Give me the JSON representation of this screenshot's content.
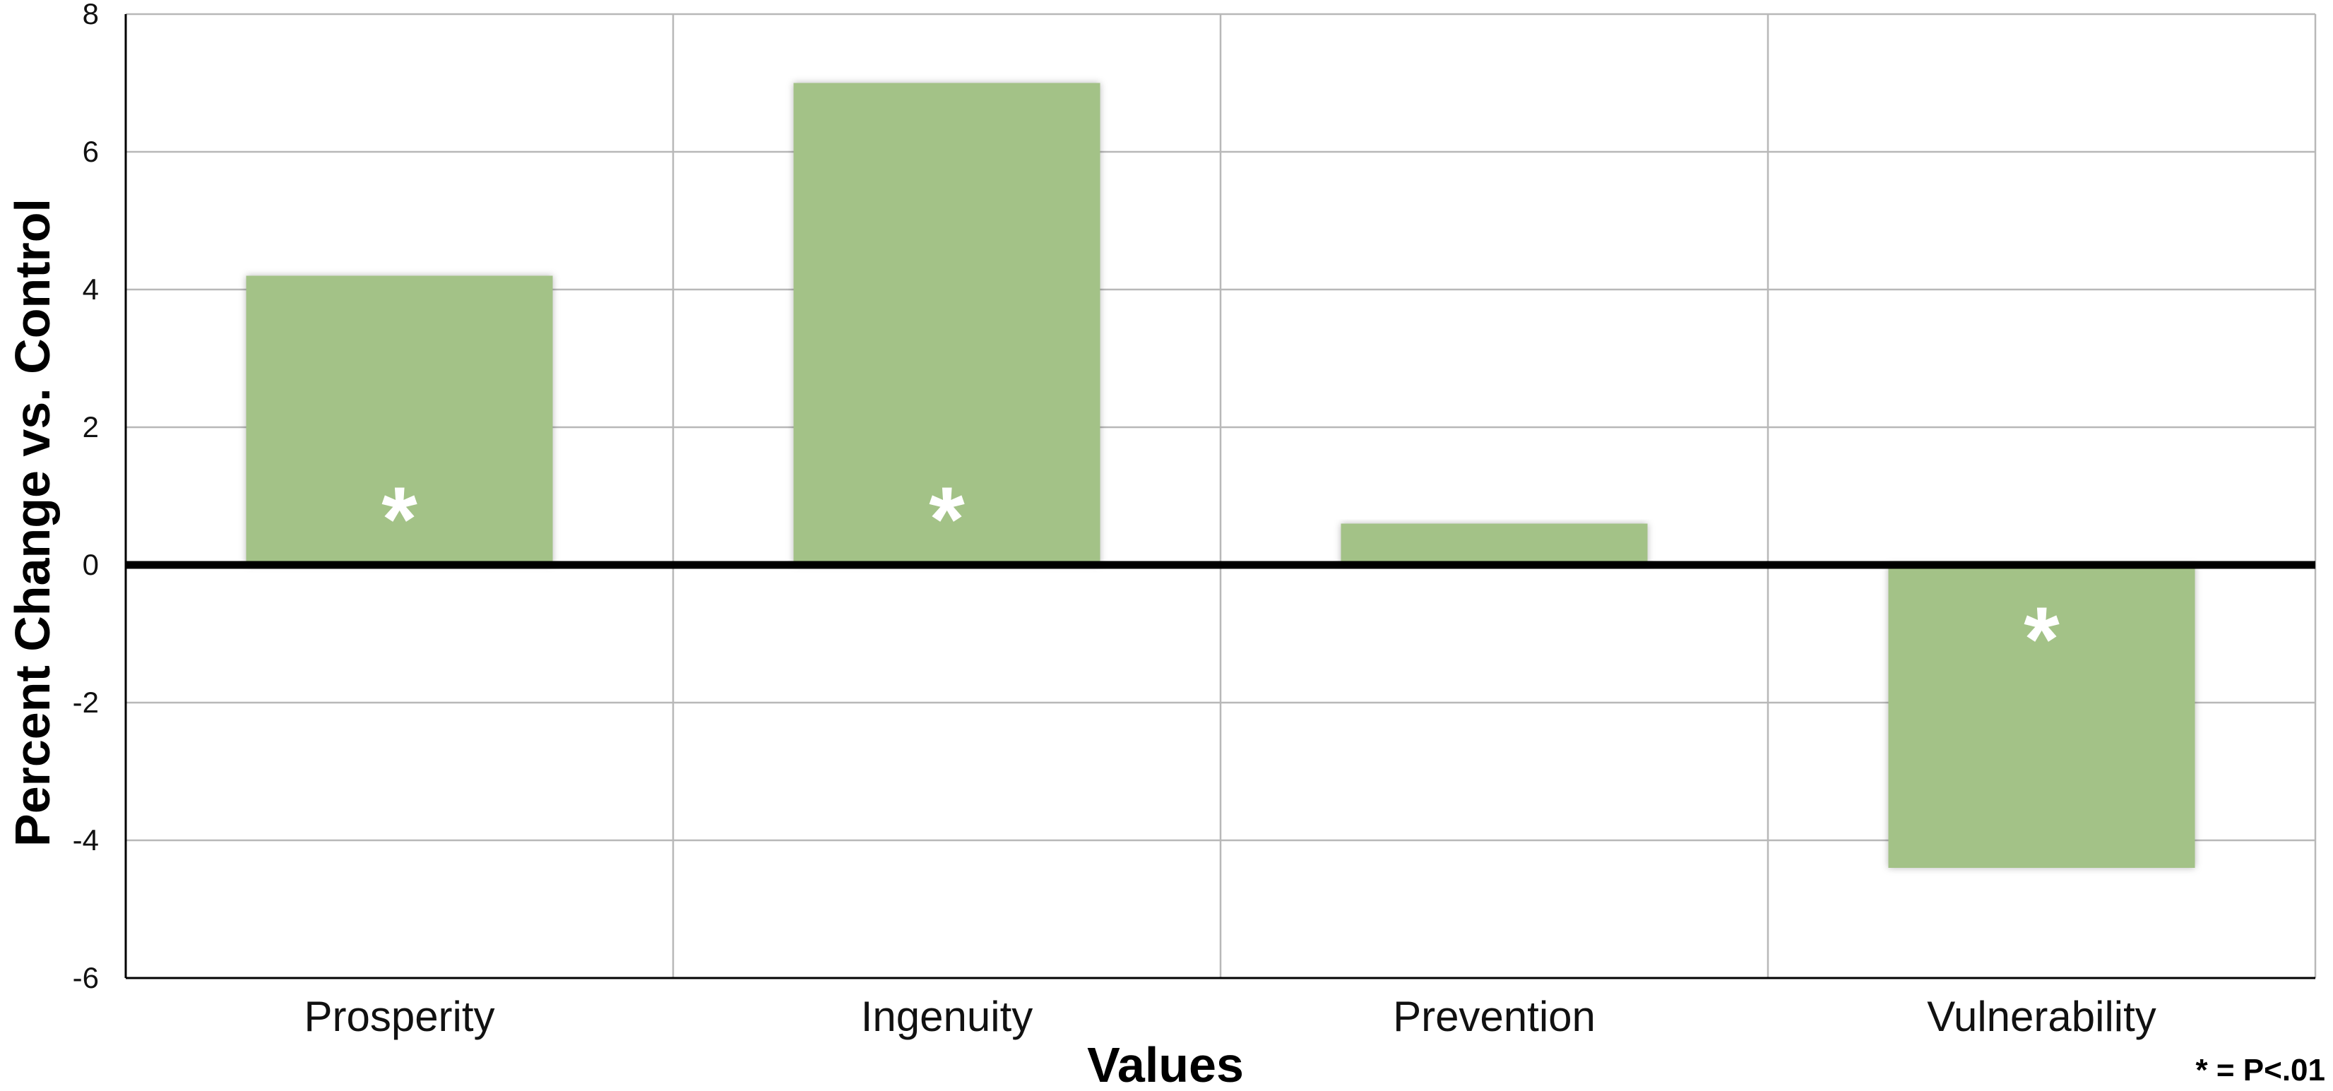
{
  "chart_data": {
    "type": "bar",
    "title": "",
    "xlabel": "Values",
    "ylabel": "Percent Change vs. Control",
    "categories": [
      "Prosperity",
      "Ingenuity",
      "Prevention",
      "Vulnerability"
    ],
    "values": [
      4.2,
      7.0,
      0.6,
      -4.4
    ],
    "significant": [
      true,
      true,
      false,
      true
    ],
    "significance_marker": "*",
    "ylim": [
      -6,
      8
    ],
    "yticks": [
      8,
      6,
      4,
      2,
      0,
      -2,
      -4,
      -6
    ],
    "grid": true,
    "legend": "none",
    "bar_color": "#a3c287",
    "footnote": "* = P<.01"
  }
}
